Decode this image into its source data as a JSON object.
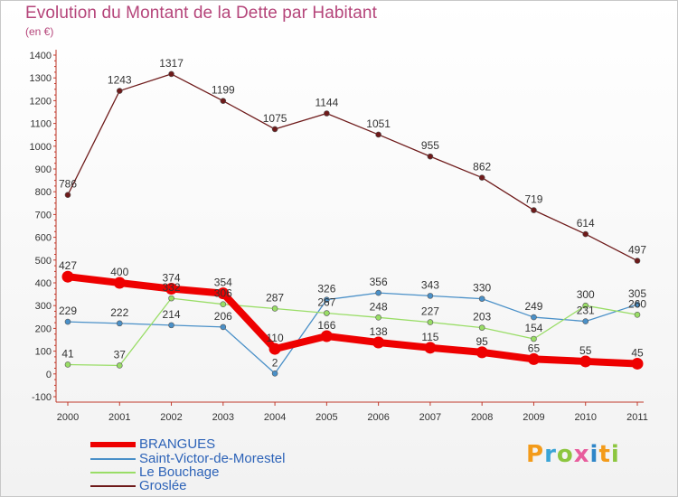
{
  "title": "Evolution du Montant de la Dette par Habitant",
  "subtitle": "(en €)",
  "logo": {
    "text": "Proxiti",
    "colors": [
      "#f39b1a",
      "#3aa4d6",
      "#8cc63f",
      "#e85d9d",
      "#2f86c8",
      "#f39b1a",
      "#8cc63f"
    ]
  },
  "chart_data": {
    "type": "line",
    "x": [
      "2000",
      "2001",
      "2002",
      "2003",
      "2004",
      "2005",
      "2006",
      "2007",
      "2008",
      "2009",
      "2010",
      "2011"
    ],
    "ylim": [
      -100,
      1400
    ],
    "yticks": [
      "-100",
      "0",
      "100",
      "200",
      "300",
      "400",
      "500",
      "600",
      "700",
      "800",
      "900",
      "1000",
      "1100",
      "1200",
      "1300",
      "1400"
    ],
    "grid": false,
    "legend": "bottom-left",
    "series": [
      {
        "name": "BRANGUES",
        "color": "#ee0000",
        "values": [
          427,
          400,
          374,
          354,
          110,
          166,
          138,
          115,
          95,
          65,
          55,
          45
        ],
        "labels": [
          "427",
          "400",
          "374",
          "354",
          "110",
          "166",
          "138",
          "115",
          "95",
          "65",
          "55",
          "45"
        ]
      },
      {
        "name": "Saint-Victor-de-Morestel",
        "color": "#4a90c8",
        "values": [
          229,
          222,
          214,
          206,
          2,
          326,
          356,
          343,
          330,
          249,
          231,
          305
        ],
        "labels": [
          "229",
          "222",
          "214",
          "206",
          "2",
          "326",
          "356",
          "343",
          "330",
          "249",
          "231",
          "305"
        ]
      },
      {
        "name": "Le Bouchage",
        "color": "#99dd66",
        "values": [
          41,
          37,
          332,
          306,
          287,
          267,
          248,
          227,
          203,
          154,
          300,
          260
        ],
        "labels": [
          "41",
          "37",
          "332",
          "306",
          "287",
          "267",
          "248",
          "227",
          "203",
          "154",
          "300",
          "260"
        ]
      },
      {
        "name": "Groslée",
        "color": "#6e1a1a",
        "values": [
          786,
          1243,
          1317,
          1199,
          1075,
          1144,
          1051,
          955,
          862,
          719,
          614,
          497
        ],
        "labels": [
          "786",
          "1243",
          "1317",
          "1199",
          "1075",
          "1144",
          "1051",
          "955",
          "862",
          "719",
          "614",
          "497"
        ]
      }
    ]
  }
}
